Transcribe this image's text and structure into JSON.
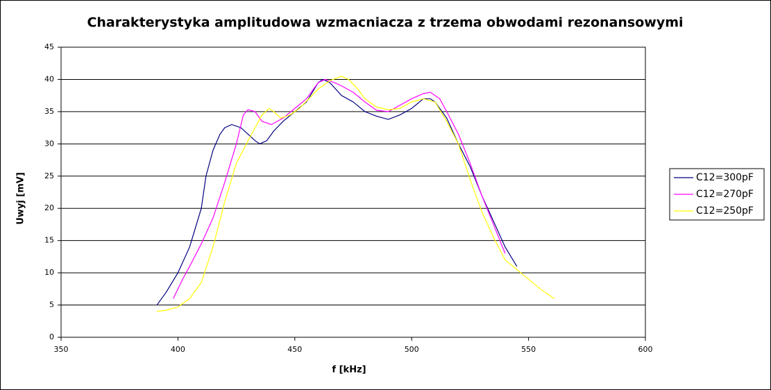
{
  "chart_data": {
    "type": "line",
    "title": "Charakterystyka amplitudowa wzmacniacza z trzema obwodami rezonansowymi",
    "x_label": "f [kHz]",
    "y_label": "Uwyj [mV]",
    "xlim": [
      350,
      600
    ],
    "xticks": [
      350,
      400,
      450,
      500,
      550,
      600
    ],
    "ylim": [
      0,
      45
    ],
    "yticks": [
      0,
      5,
      10,
      15,
      20,
      25,
      30,
      35,
      40,
      45
    ],
    "grid": true,
    "legend": "right",
    "series": [
      {
        "name": "C12=300pF",
        "color": "#000080",
        "x": [
          391,
          395,
          400,
          405,
          410,
          412,
          415,
          418,
          420,
          423,
          427,
          430,
          433,
          435,
          438,
          441,
          445,
          450,
          455,
          460,
          462,
          465,
          470,
          475,
          480,
          485,
          490,
          495,
          500,
          505,
          508,
          510,
          515,
          520,
          525,
          530,
          535,
          540,
          545
        ],
        "values": [
          5,
          7,
          10,
          14,
          20,
          25,
          29,
          31.5,
          32.5,
          33,
          32.5,
          31.5,
          30.5,
          30,
          30.5,
          32,
          33.5,
          35,
          36.5,
          39.5,
          40,
          39.5,
          37.5,
          36.5,
          35,
          34.3,
          33.8,
          34.5,
          35.5,
          37,
          37,
          36.5,
          34,
          30,
          26.5,
          22,
          18,
          14,
          11
        ]
      },
      {
        "name": "C12=270pF",
        "color": "#ff00ff",
        "x": [
          398,
          402,
          405,
          410,
          415,
          420,
          425,
          428,
          430,
          433,
          436,
          440,
          445,
          450,
          455,
          460,
          463,
          467,
          470,
          475,
          480,
          485,
          490,
          495,
          500,
          505,
          508,
          512,
          515,
          520,
          525,
          530,
          535,
          540
        ],
        "values": [
          6,
          9,
          11,
          14.5,
          18.5,
          24,
          30,
          34.5,
          35.3,
          35,
          33.5,
          33,
          34,
          35.5,
          37,
          39.5,
          40,
          39.5,
          39,
          38,
          36.5,
          35.2,
          35,
          36,
          37,
          37.8,
          38,
          37,
          35,
          31.5,
          27,
          22,
          17.5,
          13
        ]
      },
      {
        "name": "C12=250pF",
        "color": "#ffff00",
        "x": [
          391,
          395,
          400,
          405,
          410,
          415,
          420,
          425,
          430,
          433,
          436,
          439,
          441,
          444,
          448,
          452,
          456,
          460,
          465,
          470,
          473,
          477,
          480,
          485,
          490,
          495,
          500,
          505,
          510,
          515,
          520,
          525,
          530,
          535,
          540,
          545,
          550,
          555,
          561
        ],
        "values": [
          4,
          4.2,
          4.7,
          6,
          8.5,
          14,
          21,
          27,
          30.5,
          32.5,
          34.5,
          35.5,
          35,
          34,
          34.5,
          35.5,
          37,
          38.5,
          39.8,
          40.5,
          40,
          38.5,
          37,
          35.7,
          35.3,
          35.5,
          36.5,
          37,
          36.5,
          33.5,
          30,
          24.5,
          19.5,
          15.5,
          12,
          10.5,
          9,
          7.5,
          6
        ]
      }
    ]
  }
}
